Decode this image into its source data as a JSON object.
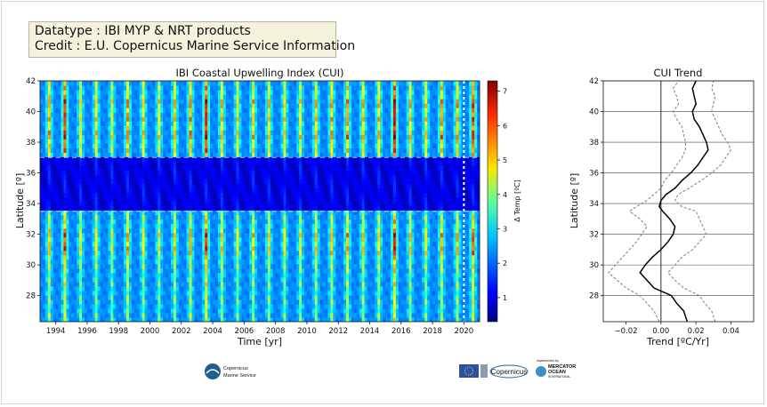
{
  "info": {
    "datatype": "Datatype : IBI MYP & NRT products",
    "credit": "Credit : E.U. Copernicus Marine Service Information"
  },
  "logos": {
    "cmems_line1": "Copernicus",
    "cmems_line2": "Marine Service",
    "copernicus": "Copernicus",
    "mercator_prefix": "implemented by",
    "mercator_line1": "MERCATOR",
    "mercator_line2": "OCEAN",
    "mercator_line3": "INTERNATIONAL"
  },
  "chart_data": [
    {
      "type": "heatmap",
      "title": "IBI Coastal Upwelling Index (CUI)",
      "xlabel": "Time [yr]",
      "ylabel": "Latitude [º]",
      "xlim": [
        1993,
        2021
      ],
      "ylim": [
        26.3,
        42
      ],
      "x_ticks": [
        1994,
        1996,
        1998,
        2000,
        2002,
        2004,
        2006,
        2008,
        2010,
        2012,
        2014,
        2016,
        2018,
        2020
      ],
      "y_ticks": [
        28,
        30,
        32,
        34,
        36,
        38,
        40,
        42
      ],
      "colorbar": {
        "label": "Δ Temp [ºC]",
        "range": [
          0.3,
          7.3
        ],
        "ticks": [
          1,
          2,
          3,
          4,
          5,
          6,
          7
        ],
        "colormap": "jet"
      },
      "low_upwelling_band": [
        33.5,
        37
      ],
      "marker_line_x": 2020,
      "upwelling_peak_lat": [
        31.5,
        38.3,
        40.5
      ],
      "peak_intensity_by_year": [
        {
          "year": 1993,
          "value": 5.2
        },
        {
          "year": 1994,
          "value": 6.2
        },
        {
          "year": 1995,
          "value": 4.6
        },
        {
          "year": 1996,
          "value": 4.8
        },
        {
          "year": 1997,
          "value": 4.4
        },
        {
          "year": 1998,
          "value": 5.4
        },
        {
          "year": 1999,
          "value": 4.8
        },
        {
          "year": 2000,
          "value": 4.6
        },
        {
          "year": 2001,
          "value": 5.0
        },
        {
          "year": 2002,
          "value": 5.4
        },
        {
          "year": 2003,
          "value": 6.4
        },
        {
          "year": 2004,
          "value": 5.0
        },
        {
          "year": 2005,
          "value": 4.7
        },
        {
          "year": 2006,
          "value": 5.0
        },
        {
          "year": 2007,
          "value": 4.9
        },
        {
          "year": 2008,
          "value": 4.7
        },
        {
          "year": 2009,
          "value": 4.6
        },
        {
          "year": 2010,
          "value": 5.0
        },
        {
          "year": 2011,
          "value": 5.2
        },
        {
          "year": 2012,
          "value": 5.4
        },
        {
          "year": 2013,
          "value": 5.0
        },
        {
          "year": 2014,
          "value": 5.0
        },
        {
          "year": 2015,
          "value": 6.6
        },
        {
          "year": 2016,
          "value": 5.0
        },
        {
          "year": 2017,
          "value": 4.8
        },
        {
          "year": 2018,
          "value": 5.4
        },
        {
          "year": 2019,
          "value": 5.2
        },
        {
          "year": 2020,
          "value": 6.0
        }
      ]
    },
    {
      "type": "line",
      "title": "CUI Trend",
      "xlabel": "Trend [ºC/Yr]",
      "ylabel": "Latitude [º]",
      "xlim": [
        -0.033,
        0.053
      ],
      "ylim": [
        26.3,
        42
      ],
      "x_ticks": [
        -0.02,
        0.0,
        0.02,
        0.04
      ],
      "x_tick_labels": [
        "−0.02",
        "0.00",
        "0.02",
        "0.04"
      ],
      "y_ticks": [
        28,
        30,
        32,
        34,
        36,
        38,
        40,
        42
      ],
      "grid": "horizontal",
      "latitude": [
        26.3,
        27.0,
        27.5,
        28.0,
        28.5,
        29.0,
        29.5,
        30.0,
        30.5,
        31.0,
        31.5,
        32.0,
        32.5,
        33.0,
        33.5,
        33.8,
        34.2,
        34.6,
        35.0,
        35.5,
        36.0,
        36.5,
        37.0,
        37.5,
        38.0,
        38.5,
        39.0,
        39.5,
        40.0,
        40.5,
        41.0,
        41.5,
        42.0
      ],
      "series": [
        {
          "style": "solid",
          "values": [
            0.015,
            0.013,
            0.009,
            0.006,
            -0.004,
            -0.008,
            -0.012,
            -0.009,
            -0.005,
            0.0,
            0.004,
            0.007,
            0.008,
            0.005,
            0.001,
            -0.001,
            0.0,
            0.003,
            0.008,
            0.012,
            0.017,
            0.021,
            0.024,
            0.027,
            0.026,
            0.024,
            0.022,
            0.019,
            0.018,
            0.02,
            0.019,
            0.018,
            0.02
          ]
        },
        {
          "style": "dashed",
          "values": [
            0.031,
            0.029,
            0.025,
            0.022,
            0.013,
            0.008,
            0.004,
            0.008,
            0.012,
            0.018,
            0.022,
            0.026,
            0.024,
            0.022,
            0.02,
            0.012,
            0.008,
            0.01,
            0.016,
            0.023,
            0.029,
            0.034,
            0.037,
            0.04,
            0.038,
            0.035,
            0.033,
            0.031,
            0.029,
            0.03,
            0.031,
            0.029,
            0.03
          ]
        },
        {
          "style": "dashed",
          "values": [
            -0.001,
            -0.004,
            -0.008,
            -0.012,
            -0.02,
            -0.025,
            -0.03,
            -0.026,
            -0.022,
            -0.018,
            -0.014,
            -0.011,
            -0.008,
            -0.012,
            -0.018,
            -0.014,
            -0.008,
            -0.004,
            0.0,
            0.002,
            0.006,
            0.009,
            0.012,
            0.014,
            0.014,
            0.013,
            0.012,
            0.009,
            0.007,
            0.01,
            0.009,
            0.007,
            0.01
          ]
        }
      ]
    }
  ]
}
